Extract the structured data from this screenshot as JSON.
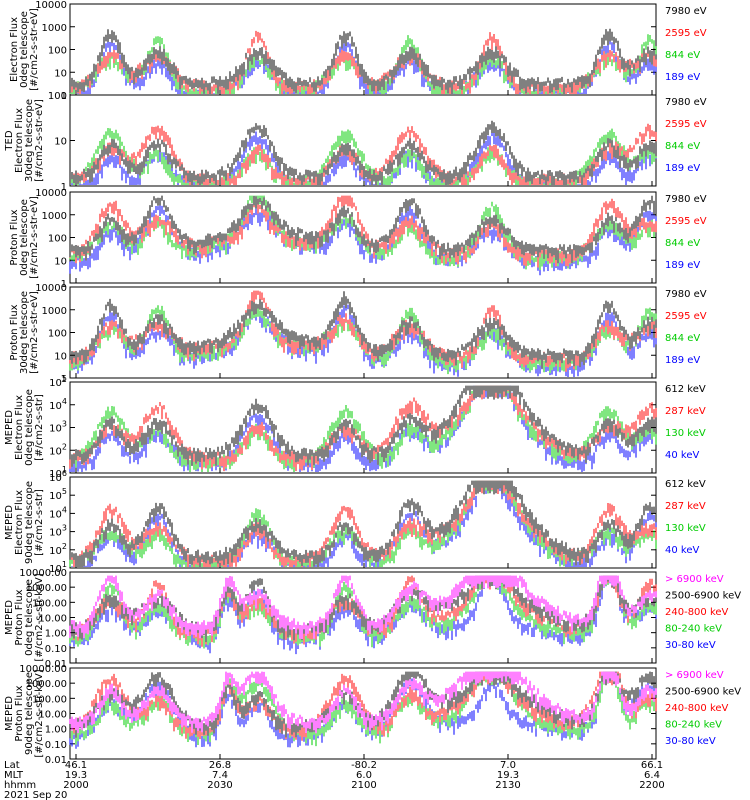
{
  "chart_data": [
    {
      "type": "line",
      "ylabel_lines": [
        "Electron Flux",
        "0deg telescope",
        "[#/cm2-s-str-eV]"
      ],
      "yscale": "log",
      "ylim": [
        1,
        10000
      ],
      "yticks": [
        "1",
        "10",
        "100",
        "1000",
        "10000"
      ],
      "series": [
        {
          "name": "7980 eV",
          "color": "#000000"
        },
        {
          "name": "2595 eV",
          "color": "#ff0000"
        },
        {
          "name": "844 eV",
          "color": "#00cc00"
        },
        {
          "name": "189 eV",
          "color": "#0000ff"
        }
      ]
    },
    {
      "type": "line",
      "ylabel_lines": [
        "TED",
        "Electron Flux",
        "30deg telescope",
        "[#/cm2-s-str-eV]"
      ],
      "yscale": "log",
      "ylim": [
        1,
        1000
      ],
      "yticks": [
        "1",
        "10",
        "100"
      ],
      "series": [
        {
          "name": "7980 eV",
          "color": "#000000"
        },
        {
          "name": "2595 eV",
          "color": "#ff0000"
        },
        {
          "name": "844 eV",
          "color": "#00cc00"
        },
        {
          "name": "189 eV",
          "color": "#0000ff"
        }
      ]
    },
    {
      "type": "line",
      "ylabel_lines": [
        "Proton Flux",
        "0deg telescope",
        "[#/cm2-s-str-eV]"
      ],
      "yscale": "log",
      "ylim": [
        1,
        10000
      ],
      "yticks": [
        "1",
        "10",
        "100",
        "1000",
        "10000"
      ],
      "series": [
        {
          "name": "7980 eV",
          "color": "#000000"
        },
        {
          "name": "2595 eV",
          "color": "#ff0000"
        },
        {
          "name": "844 eV",
          "color": "#00cc00"
        },
        {
          "name": "189 eV",
          "color": "#0000ff"
        }
      ]
    },
    {
      "type": "line",
      "ylabel_lines": [
        "Proton Flux",
        "30deg telescope",
        "[#/cm2-s-str-eV]"
      ],
      "yscale": "log",
      "ylim": [
        1,
        10000
      ],
      "yticks": [
        "1",
        "10",
        "100",
        "1000",
        "10000"
      ],
      "series": [
        {
          "name": "7980 eV",
          "color": "#000000"
        },
        {
          "name": "2595 eV",
          "color": "#ff0000"
        },
        {
          "name": "844 eV",
          "color": "#00cc00"
        },
        {
          "name": "189 eV",
          "color": "#0000ff"
        }
      ]
    },
    {
      "type": "line",
      "ylabel_lines": [
        "MEPED",
        "Electron Flux",
        "0deg telescope",
        "[#/cm2-s-str]"
      ],
      "yscale": "log",
      "ylim": [
        10,
        100000
      ],
      "ytick_exps": [
        "1",
        "2",
        "3",
        "4",
        "5"
      ],
      "series": [
        {
          "name": "612 keV",
          "color": "#000000"
        },
        {
          "name": "287 keV",
          "color": "#ff0000"
        },
        {
          "name": "130 keV",
          "color": "#00cc00"
        },
        {
          "name": "40 keV",
          "color": "#0000ff"
        }
      ]
    },
    {
      "type": "line",
      "ylabel_lines": [
        "MEPED",
        "Electron Flux",
        "90deg telescope",
        "[#/cm2-s-str]"
      ],
      "yscale": "log",
      "ylim": [
        10,
        1000000
      ],
      "ytick_exps": [
        "1",
        "2",
        "3",
        "4",
        "5",
        "6"
      ],
      "series": [
        {
          "name": "612 keV",
          "color": "#000000"
        },
        {
          "name": "287 keV",
          "color": "#ff0000"
        },
        {
          "name": "130 keV",
          "color": "#00cc00"
        },
        {
          "name": "40 keV",
          "color": "#0000ff"
        }
      ]
    },
    {
      "type": "line",
      "ylabel_lines": [
        "MEPED",
        "Proton Flux",
        "0deg telescope",
        "[#/cm2-s-str-keV]"
      ],
      "yscale": "log",
      "ylim": [
        0.01,
        10000
      ],
      "yticks": [
        "0.01",
        "0.10",
        "1.00",
        "10.00",
        "100.00",
        "1000.00",
        "10000.00"
      ],
      "series": [
        {
          "name": "> 6900 keV",
          "color": "#ff00ff"
        },
        {
          "name": "2500-6900 keV",
          "color": "#000000"
        },
        {
          "name": "240-800 keV",
          "color": "#ff0000"
        },
        {
          "name": "80-240 keV",
          "color": "#00cc00"
        },
        {
          "name": "30-80 keV",
          "color": "#0000ff"
        }
      ]
    },
    {
      "type": "line",
      "ylabel_lines": [
        "MEPED",
        "Proton Flux",
        "90deg telescope",
        "[#/cm2-s-str-keV]"
      ],
      "yscale": "log",
      "ylim": [
        0.01,
        10000
      ],
      "yticks": [
        "0.01",
        "0.10",
        "1.00",
        "10.00",
        "100.00",
        "1000.00",
        "10000.00"
      ],
      "series": [
        {
          "name": "> 6900 keV",
          "color": "#ff00ff"
        },
        {
          "name": "2500-6900 keV",
          "color": "#000000"
        },
        {
          "name": "240-800 keV",
          "color": "#ff0000"
        },
        {
          "name": "80-240 keV",
          "color": "#00cc00"
        },
        {
          "name": "30-80 keV",
          "color": "#0000ff"
        }
      ]
    }
  ],
  "x_axis": {
    "row_labels": [
      "Lat",
      "MLT",
      "hhmm"
    ],
    "columns": [
      {
        "lat": "46.1",
        "mlt": "19.3",
        "hhmm": "2000"
      },
      {
        "lat": "26.8",
        "mlt": "7.4",
        "hhmm": "2030"
      },
      {
        "lat": "-80.2",
        "mlt": "6.0",
        "hhmm": "2100"
      },
      {
        "lat": "7.0",
        "mlt": "19.3",
        "hhmm": "2130"
      },
      {
        "lat": "66.1",
        "mlt": "6.4",
        "hhmm": "2200"
      }
    ],
    "date": "2021 Sep 20"
  }
}
